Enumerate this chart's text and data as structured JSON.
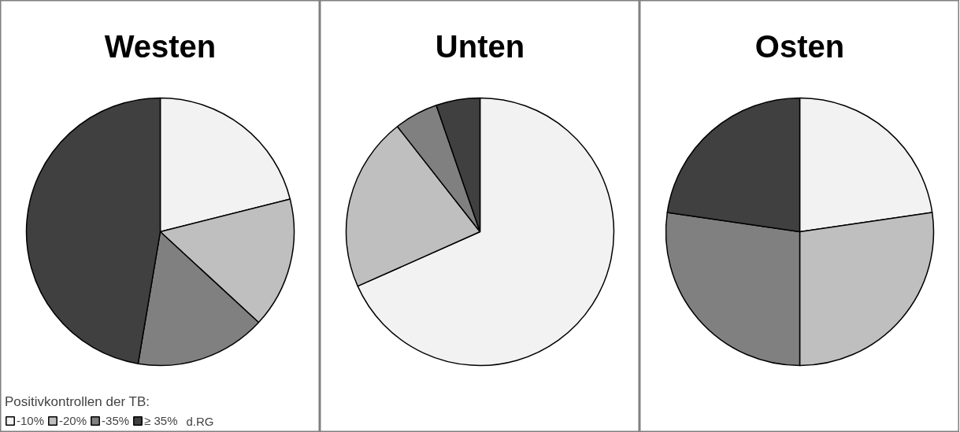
{
  "chart_data": [
    {
      "type": "pie",
      "title": "Westen",
      "categories": [
        "-10%",
        "-20%",
        "-35%",
        "≥ 35%"
      ],
      "values": [
        21.1,
        15.8,
        15.8,
        47.4
      ],
      "colors": [
        "#f2f2f2",
        "#bfbfbf",
        "#808080",
        "#404040"
      ],
      "legend": "bottom left",
      "legend_title": "Positivkontrollen der TB:",
      "annotations": [
        "d.RG"
      ]
    },
    {
      "type": "pie",
      "title": "Unten",
      "categories": [
        null,
        null,
        null,
        null
      ],
      "values": [
        68.4,
        21.1,
        5.3,
        5.3
      ],
      "colors": [
        "#f2f2f2",
        "#bfbfbf",
        "#808080",
        "#404040"
      ]
    },
    {
      "type": "pie",
      "title": "Osten",
      "categories": [
        null,
        null,
        null,
        null
      ],
      "values": [
        22.7,
        27.3,
        27.3,
        22.7
      ],
      "colors": [
        "#f2f2f2",
        "#bfbfbf",
        "#808080",
        "#404040"
      ]
    }
  ]
}
